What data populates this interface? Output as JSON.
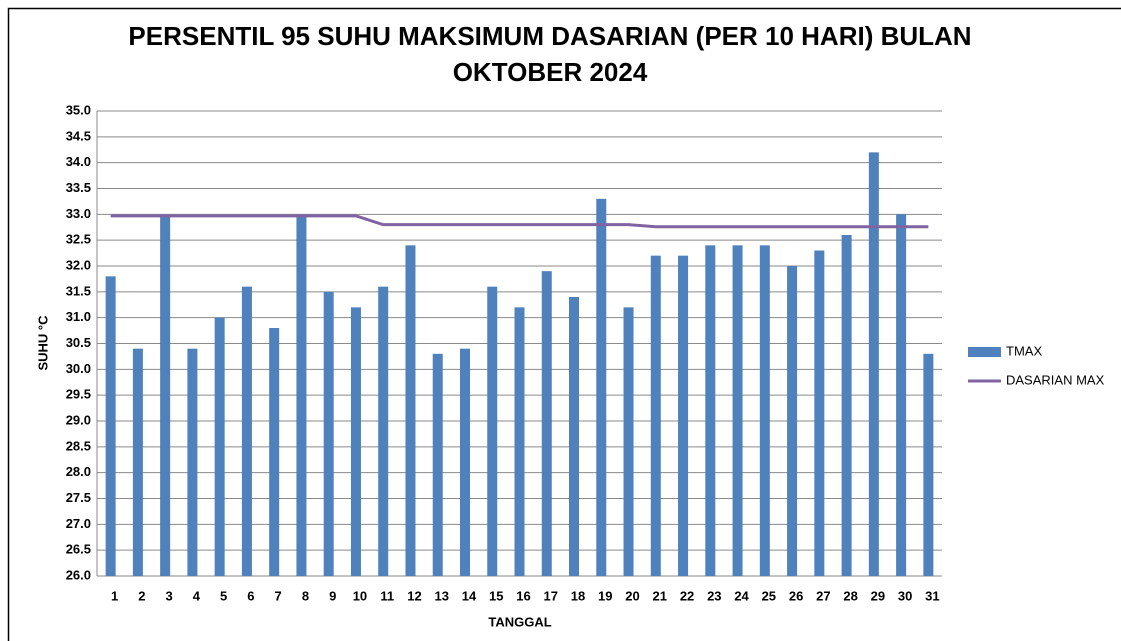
{
  "chart_data": {
    "type": "bar",
    "title": "PERSENTIL 95 SUHU MAKSIMUM DASARIAN (PER 10 HARI) BULAN OKTOBER 2024",
    "x_label": "TANGGAL",
    "y_label": "SUHU °C",
    "categories": [
      "1",
      "2",
      "3",
      "4",
      "5",
      "6",
      "7",
      "8",
      "9",
      "10",
      "11",
      "12",
      "13",
      "14",
      "15",
      "16",
      "17",
      "18",
      "19",
      "20",
      "21",
      "22",
      "23",
      "24",
      "25",
      "26",
      "27",
      "28",
      "29",
      "30",
      "31"
    ],
    "series": [
      {
        "name": "TMAX",
        "type": "bar",
        "color": "#4f81bd",
        "values": [
          31.8,
          30.4,
          33.0,
          30.4,
          31.0,
          31.6,
          30.8,
          33.0,
          31.5,
          31.2,
          31.6,
          32.4,
          30.3,
          30.4,
          31.6,
          31.2,
          31.9,
          31.4,
          33.3,
          31.2,
          32.2,
          32.2,
          32.4,
          32.4,
          32.4,
          32.0,
          32.3,
          32.6,
          34.2,
          33.0,
          30.3
        ]
      },
      {
        "name": "DASARIAN MAX",
        "type": "line",
        "color": "#8064a2",
        "values": [
          32.97,
          32.97,
          32.97,
          32.97,
          32.97,
          32.97,
          32.97,
          32.97,
          32.97,
          32.97,
          32.8,
          32.8,
          32.8,
          32.8,
          32.8,
          32.8,
          32.8,
          32.8,
          32.8,
          32.8,
          32.76,
          32.76,
          32.76,
          32.76,
          32.76,
          32.76,
          32.76,
          32.76,
          32.76,
          32.76,
          32.76
        ]
      }
    ],
    "ylim": [
      26,
      35
    ],
    "yticks": [
      {
        "value": 26,
        "label": "26.0"
      },
      26.5,
      {
        "value": 27,
        "label": "27.0"
      },
      27.5,
      {
        "value": 28,
        "label": "28.0"
      },
      28.5,
      {
        "value": 29,
        "label": "29.0"
      },
      29.5,
      {
        "value": 30,
        "label": "30.0"
      },
      30.5,
      {
        "value": 31,
        "label": "31.0"
      },
      31.5,
      {
        "value": 32,
        "label": "32.0"
      },
      32.5,
      {
        "value": 33,
        "label": "33.0"
      },
      33.5,
      {
        "value": 34,
        "label": "34.0"
      },
      34.5,
      {
        "value": 35,
        "label": "35.0"
      }
    ],
    "grid": true,
    "legend": "right"
  }
}
